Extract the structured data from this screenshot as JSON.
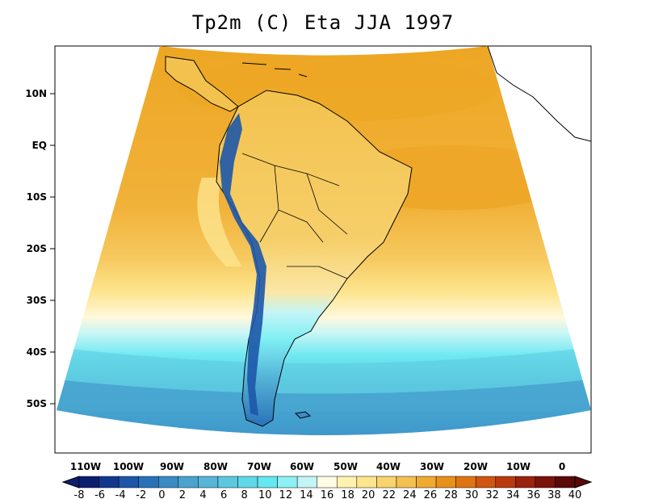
{
  "title": "Tp2m (C) Eta JJA 1997",
  "y_axis_labels": [
    "10N",
    "EQ",
    "10S",
    "20S",
    "30S",
    "40S",
    "50S"
  ],
  "x_axis_labels": [
    "110W",
    "100W",
    "90W",
    "80W",
    "70W",
    "60W",
    "50W",
    "40W",
    "30W",
    "20W",
    "10W",
    "0"
  ],
  "colorbar": {
    "labels": [
      "-8",
      "-6",
      "-4",
      "-2",
      "0",
      "2",
      "4",
      "6",
      "8",
      "10",
      "12",
      "14",
      "16",
      "18",
      "20",
      "22",
      "24",
      "26",
      "28",
      "30",
      "32",
      "34",
      "36",
      "38",
      "40"
    ],
    "colors": [
      "#0b1f6e",
      "#12378e",
      "#1d56a8",
      "#2a72b8",
      "#3b8cc4",
      "#4aa3cf",
      "#56b5d8",
      "#5cc8e0",
      "#5fd8e8",
      "#63e7f0",
      "#8cf0f4",
      "#c4f5f6",
      "#fffbe4",
      "#fff2b0",
      "#fde58e",
      "#f9d46e",
      "#f4c04f",
      "#f0aa30",
      "#e99018",
      "#df7412",
      "#cf5510",
      "#b83a0e",
      "#9a230d",
      "#7b130b",
      "#5a0808"
    ]
  },
  "colors": {
    "ocean_warm": "#eda623",
    "ocean_mid": "#f3c24e",
    "ocean_cool": "#fde58e",
    "ocean_cream": "#fff8dd",
    "ocean_cyan": "#7ff0f4",
    "ocean_teal": "#4fb8d8",
    "ocean_blue": "#3b8cc4",
    "andes": "#1d56a8",
    "coast": "#000000"
  }
}
